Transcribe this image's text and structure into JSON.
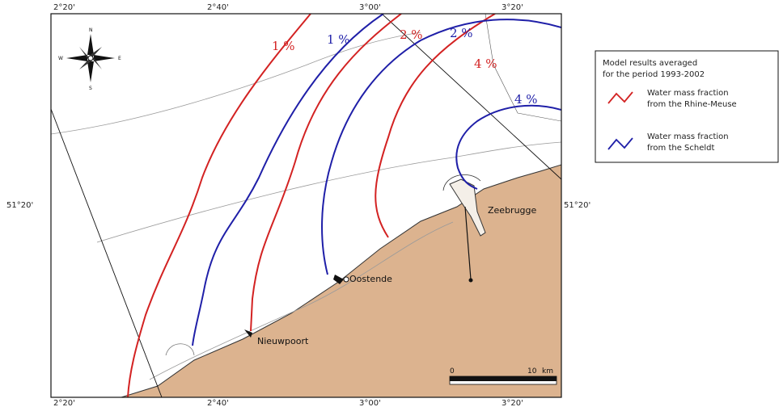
{
  "map": {
    "coordinates": {
      "top": [
        "2°20'",
        "2°40'",
        "3°00'",
        "3°20'"
      ],
      "bottom": [
        "2°20'",
        "2°40'",
        "3°00'",
        "3°20'"
      ],
      "left": "51°20'",
      "right": "51°20'"
    },
    "compass": {
      "n": "N",
      "s": "S",
      "e": "E",
      "w": "W"
    },
    "places": {
      "zeebrugge": "Zeebrugge",
      "oostende": "Oostende",
      "nieuwpoort": "Nieuwpoort"
    },
    "contour_labels": {
      "red_1": "1 %",
      "blue_1": "1 %",
      "red_2": "2 %",
      "blue_2": "2 %",
      "red_4": "4 %",
      "blue_4": "4 %"
    },
    "scale_bar": {
      "start": "0",
      "end": "10",
      "unit": "km"
    }
  },
  "legend": {
    "title_line1": "Model results averaged",
    "title_line2": "for the period 1993-2002",
    "red_line1": "Water mass fraction",
    "red_line2": "from the Rhine-Meuse",
    "blue_line1": "Water mass fraction",
    "blue_line2": "from the Scheldt"
  },
  "colors": {
    "rhine_meuse": "#d32222",
    "scheldt": "#1f1fa8",
    "land": "#dcb38f",
    "sea": "#ffffff"
  }
}
